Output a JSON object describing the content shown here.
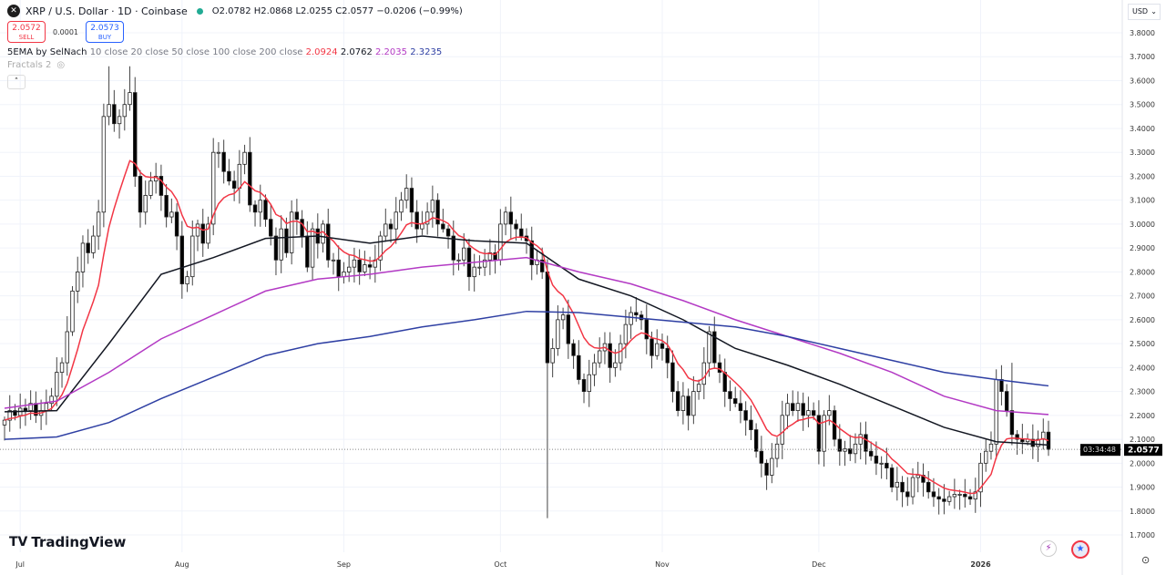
{
  "header": {
    "symbol_title": "XRP / U.S. Dollar · 1D · Coinbase",
    "ohlc": "O2.0782 H2.0868 L2.0255 C2.0577 −0.0206 (−0.99%)",
    "sell_price": "2.0572",
    "sell_label": "SELL",
    "spread": "0.0001",
    "buy_price": "2.0573",
    "buy_label": "BUY",
    "indicator_name": "5EMA by SelNach",
    "indicator_params": "10 close 20 close 50 close 100 close 200 close",
    "ema_values": [
      "2.0924",
      "2.0762",
      "2.2035",
      "2.3235"
    ],
    "fractals_label": "Fractals 2",
    "collapse_icon": "chevron-up-icon",
    "currency": "USD"
  },
  "brand": {
    "logo_text": "TradingView"
  },
  "colors": {
    "up_body": "#ffffff",
    "down_body": "#000000",
    "wick": "#444444",
    "ema_fast": "#f23645",
    "ema_50": "#131722",
    "ema_100": "#b33ac4",
    "ema_200": "#2e3fa3",
    "sell": "#f23645",
    "buy": "#2962ff"
  },
  "chart_data": {
    "type": "candlestick",
    "title": "XRP / U.S. Dollar · 1D · Coinbase",
    "ylim": [
      1.65,
      3.85
    ],
    "y_ticks": [
      "3.8000",
      "3.7000",
      "3.6000",
      "3.5000",
      "3.4000",
      "3.3000",
      "3.2000",
      "3.1000",
      "3.0000",
      "2.9000",
      "2.8000",
      "2.7000",
      "2.6000",
      "2.5000",
      "2.4000",
      "2.3000",
      "2.2000",
      "2.1000",
      "2.0000",
      "1.9000",
      "1.8000",
      "1.7000"
    ],
    "x_ticks": [
      "Jul",
      "Aug",
      "Sep",
      "Oct",
      "Nov",
      "Dec",
      "2026"
    ],
    "grid": true,
    "last_price": "2.0577",
    "countdown": "03:34:48",
    "closes": [
      2.18,
      2.22,
      2.2,
      2.23,
      2.22,
      2.25,
      2.2,
      2.22,
      2.25,
      2.28,
      2.38,
      2.42,
      2.55,
      2.72,
      2.8,
      2.92,
      2.88,
      2.95,
      3.05,
      3.45,
      3.5,
      3.42,
      3.45,
      3.5,
      3.55,
      3.2,
      3.05,
      3.12,
      3.18,
      3.2,
      3.12,
      3.03,
      3.05,
      2.95,
      2.75,
      2.78,
      2.95,
      3.0,
      2.92,
      3.0,
      3.3,
      3.3,
      3.22,
      3.18,
      3.15,
      3.25,
      3.3,
      3.08,
      3.05,
      3.1,
      3.02,
      2.95,
      2.85,
      2.98,
      2.88,
      3.05,
      3.02,
      2.95,
      2.82,
      2.98,
      2.92,
      3.0,
      2.85,
      2.85,
      2.78,
      2.8,
      2.82,
      2.85,
      2.8,
      2.83,
      2.82,
      2.85,
      2.95,
      3.0,
      2.98,
      3.05,
      3.1,
      3.15,
      3.05,
      2.98,
      3.0,
      3.05,
      3.1,
      3.0,
      2.98,
      2.95,
      2.85,
      2.85,
      2.9,
      2.78,
      2.82,
      2.82,
      2.85,
      2.88,
      2.85,
      3.0,
      3.05,
      3.0,
      2.98,
      2.95,
      2.93,
      2.83,
      2.85,
      2.8,
      2.42,
      2.48,
      2.6,
      2.62,
      2.5,
      2.45,
      2.35,
      2.3,
      2.37,
      2.42,
      2.47,
      2.5,
      2.4,
      2.42,
      2.5,
      2.58,
      2.63,
      2.62,
      2.6,
      2.52,
      2.45,
      2.5,
      2.48,
      2.42,
      2.3,
      2.22,
      2.28,
      2.2,
      2.3,
      2.33,
      2.42,
      2.55,
      2.42,
      2.38,
      2.3,
      2.27,
      2.25,
      2.22,
      2.18,
      2.14,
      2.05,
      2.0,
      1.95,
      2.02,
      2.08,
      2.2,
      2.25,
      2.22,
      2.25,
      2.2,
      2.22,
      2.2,
      2.05,
      2.2,
      2.22,
      2.1,
      2.05,
      2.06,
      2.04,
      2.08,
      2.12,
      2.05,
      2.03,
      2.0,
      2.0,
      1.98,
      1.9,
      1.92,
      1.88,
      1.86,
      1.94,
      1.95,
      1.92,
      1.88,
      1.86,
      1.85,
      1.84,
      1.86,
      1.87,
      1.87,
      1.86,
      1.85,
      1.88,
      2.0,
      2.05,
      2.08,
      2.35,
      2.3,
      2.22,
      2.12,
      2.1,
      2.09,
      2.1,
      2.07,
      2.1,
      2.13,
      2.0577
    ],
    "notable_wicks": [
      {
        "index": 104,
        "low": 1.77
      },
      {
        "index": 20,
        "high": 3.66
      },
      {
        "index": 24,
        "high": 3.66
      },
      {
        "index": 193,
        "high": 2.42
      }
    ],
    "series": [
      {
        "name": "EMA 50",
        "color": "#131722",
        "values": [
          2.215,
          2.22,
          2.5,
          2.79,
          2.86,
          2.94,
          2.95,
          2.92,
          2.95,
          2.93,
          2.92,
          2.77,
          2.7,
          2.6,
          2.48,
          2.41,
          2.33,
          2.24,
          2.15,
          2.09,
          2.076
        ]
      },
      {
        "name": "EMA 100",
        "color": "#b33ac4",
        "values": [
          2.23,
          2.26,
          2.38,
          2.52,
          2.62,
          2.72,
          2.77,
          2.79,
          2.82,
          2.84,
          2.86,
          2.8,
          2.75,
          2.68,
          2.6,
          2.53,
          2.46,
          2.38,
          2.28,
          2.22,
          2.2035
        ]
      },
      {
        "name": "EMA 200",
        "color": "#2e3fa3",
        "values": [
          2.1,
          2.11,
          2.17,
          2.27,
          2.36,
          2.45,
          2.5,
          2.53,
          2.57,
          2.6,
          2.635,
          2.63,
          2.61,
          2.59,
          2.57,
          2.53,
          2.48,
          2.43,
          2.38,
          2.35,
          2.3235
        ]
      }
    ]
  }
}
